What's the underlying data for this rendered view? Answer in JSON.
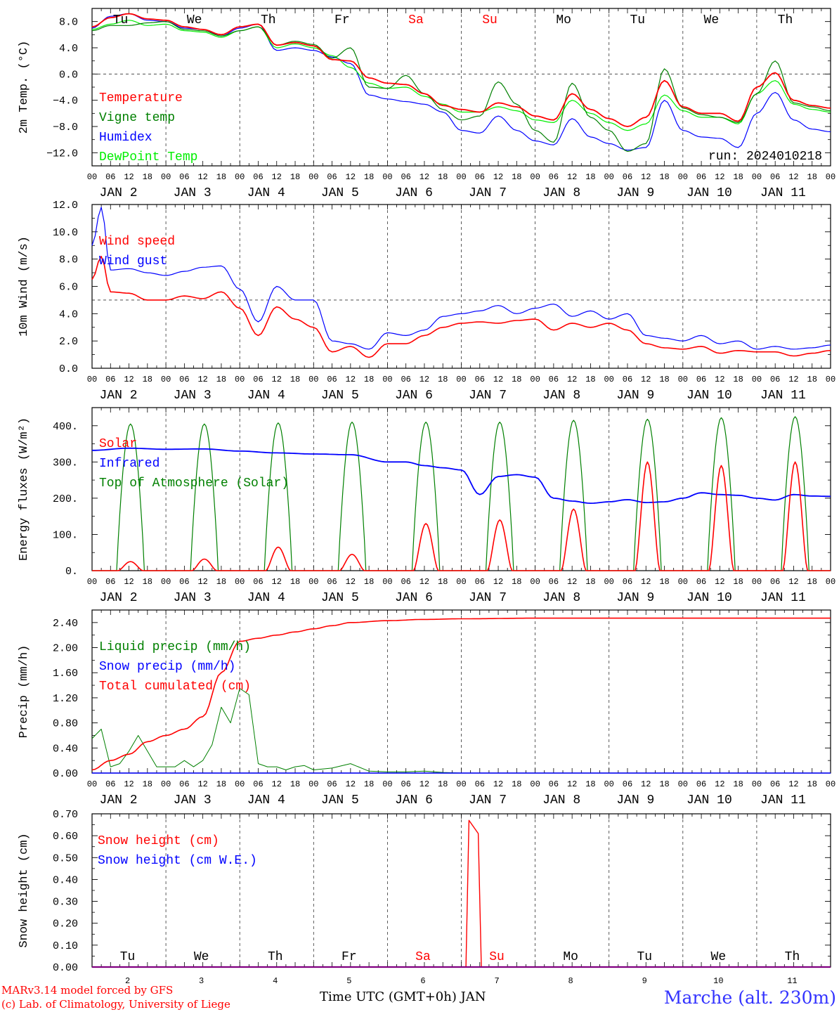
{
  "footer": {
    "model": "MARv3.14 model forced by GFS",
    "credit": "(c) Lab. of Climatology, University of Liege",
    "xlabel": "Time UTC (GMT+0h) JAN",
    "station": "Marche (alt. 230m)",
    "run": "run: 2024010218"
  },
  "colors": {
    "red": "#ff0000",
    "green": "#008000",
    "blue": "#0000ff",
    "lightgreen": "#00ee00",
    "axis": "#000000",
    "weekend": "#ff0000"
  },
  "days": {
    "names": [
      "Tu",
      "We",
      "Th",
      "Fr",
      "Sa",
      "Su",
      "Mo",
      "Tu",
      "We",
      "Th"
    ],
    "weekend": [
      false,
      false,
      false,
      false,
      true,
      true,
      false,
      false,
      false,
      false
    ],
    "dates": [
      "JAN  2",
      "JAN  3",
      "JAN  4",
      "JAN  5",
      "JAN  6",
      "JAN  7",
      "JAN  8",
      "JAN  9",
      "JAN 10",
      "JAN 11"
    ],
    "numbers": [
      "2",
      "3",
      "4",
      "5",
      "6",
      "7",
      "8",
      "9",
      "10",
      "11"
    ],
    "hour_ticks": [
      "00",
      "06",
      "12",
      "18"
    ],
    "final_tick": "00"
  },
  "chart_data": [
    {
      "type": "line",
      "ylabel": "2m Temp. (°C)",
      "ylim": [
        -14,
        10
      ],
      "yticks": [
        -12,
        -8,
        -4,
        0,
        4,
        8
      ],
      "ytick_labels": [
        "−12.0",
        "−8.0",
        "−4.0",
        "0.0",
        "4.0",
        "8.0"
      ],
      "zero_line": 0,
      "grid": "dashed day separators",
      "legend": "left",
      "x_unit": "hours since JAN 2 00 UTC",
      "series": [
        {
          "name": "Temperature",
          "color": "red",
          "x": [
            0,
            6,
            12,
            18,
            24,
            30,
            36,
            42,
            48,
            54,
            60,
            66,
            72,
            78,
            84,
            90,
            96,
            102,
            108,
            114,
            120,
            126,
            132,
            138,
            144,
            150,
            156,
            162,
            168,
            174,
            180,
            186,
            192,
            198,
            204,
            210,
            216,
            222,
            228,
            234,
            240
          ],
          "y": [
            7.2,
            8.6,
            9.2,
            8.4,
            8.2,
            7.2,
            6.8,
            6.0,
            7.2,
            7.6,
            4.4,
            4.8,
            4.3,
            2.2,
            2.0,
            -0.6,
            -1.4,
            -1.6,
            -3.0,
            -4.8,
            -5.4,
            -5.8,
            -4.4,
            -5.0,
            -6.4,
            -7.0,
            -3.0,
            -5.4,
            -6.8,
            -8.0,
            -6.6,
            -1.0,
            -5.0,
            -6.0,
            -6.0,
            -7.2,
            -2.0,
            0.2,
            -4.0,
            -4.8,
            -5.2
          ]
        },
        {
          "name": "Vigne temp",
          "color": "green",
          "x": [
            0,
            6,
            12,
            18,
            24,
            30,
            36,
            42,
            48,
            54,
            60,
            66,
            72,
            78,
            84,
            90,
            96,
            102,
            108,
            114,
            120,
            126,
            132,
            138,
            144,
            150,
            156,
            162,
            168,
            174,
            180,
            186,
            192,
            198,
            204,
            210,
            216,
            222,
            228,
            234,
            240
          ],
          "y": [
            6.6,
            7.4,
            7.4,
            7.8,
            8.0,
            6.8,
            6.6,
            5.8,
            6.6,
            7.2,
            4.4,
            5.0,
            4.5,
            2.4,
            4.0,
            -2.0,
            -2.2,
            -0.2,
            -3.0,
            -5.4,
            -7.0,
            -6.4,
            -1.2,
            -4.6,
            -8.6,
            -10.4,
            -1.4,
            -6.6,
            -8.6,
            -11.8,
            -10.6,
            0.8,
            -5.2,
            -6.2,
            -6.6,
            -7.4,
            -3.0,
            2.0,
            -4.4,
            -5.0,
            -5.6
          ]
        },
        {
          "name": "Humidex",
          "color": "blue",
          "x": [
            0,
            6,
            12,
            18,
            24,
            30,
            36,
            42,
            48,
            54,
            60,
            66,
            72,
            78,
            84,
            90,
            96,
            102,
            108,
            114,
            120,
            126,
            132,
            138,
            144,
            150,
            156,
            162,
            168,
            174,
            180,
            186,
            192,
            198,
            204,
            210,
            216,
            222,
            228,
            234,
            240
          ],
          "y": [
            7.0,
            8.8,
            9.2,
            8.2,
            8.0,
            7.0,
            6.8,
            5.8,
            7.0,
            7.6,
            3.6,
            4.0,
            3.6,
            2.6,
            1.6,
            -3.2,
            -3.8,
            -4.2,
            -4.6,
            -5.8,
            -8.6,
            -9.0,
            -6.4,
            -8.6,
            -10.2,
            -10.8,
            -6.8,
            -9.6,
            -10.6,
            -11.6,
            -11.2,
            -4.0,
            -8.6,
            -9.6,
            -9.8,
            -11.2,
            -6.0,
            -2.8,
            -7.0,
            -8.4,
            -8.8
          ]
        },
        {
          "name": "DewPoint Temp",
          "color": "lightgreen",
          "x": [
            0,
            6,
            12,
            18,
            24,
            30,
            36,
            42,
            48,
            54,
            60,
            66,
            72,
            78,
            84,
            90,
            96,
            102,
            108,
            114,
            120,
            126,
            132,
            138,
            144,
            150,
            156,
            162,
            168,
            174,
            180,
            186,
            192,
            198,
            204,
            210,
            216,
            222,
            228,
            234,
            240
          ],
          "y": [
            6.8,
            7.6,
            8.2,
            7.4,
            7.6,
            6.6,
            6.4,
            5.6,
            6.6,
            7.2,
            4.0,
            4.6,
            4.0,
            2.8,
            1.0,
            -1.4,
            -2.2,
            -2.0,
            -3.4,
            -4.6,
            -5.8,
            -5.8,
            -5.0,
            -5.6,
            -7.0,
            -7.4,
            -4.0,
            -6.0,
            -7.4,
            -8.6,
            -7.6,
            -3.2,
            -5.6,
            -6.6,
            -6.6,
            -7.6,
            -3.0,
            -1.0,
            -4.6,
            -5.4,
            -5.8
          ]
        }
      ]
    },
    {
      "type": "line",
      "ylabel": "10m Wind (m/s)",
      "ylim": [
        0,
        12
      ],
      "yticks": [
        0,
        2,
        4,
        6,
        8,
        10,
        12
      ],
      "ytick_labels": [
        "0.0",
        "2.0",
        "4.0",
        "6.0",
        "8.0",
        "10.0",
        "12.0"
      ],
      "ref_line": 5,
      "legend": "left",
      "series": [
        {
          "name": "Wind speed",
          "color": "red",
          "x": [
            0,
            3,
            6,
            12,
            18,
            24,
            30,
            36,
            42,
            48,
            54,
            60,
            66,
            72,
            78,
            84,
            90,
            96,
            102,
            108,
            114,
            120,
            126,
            132,
            138,
            144,
            150,
            156,
            162,
            168,
            174,
            180,
            186,
            192,
            198,
            204,
            210,
            216,
            222,
            228,
            234,
            240
          ],
          "y": [
            6.5,
            8.2,
            5.6,
            5.5,
            5.0,
            5.0,
            5.3,
            5.1,
            5.6,
            4.4,
            2.4,
            4.5,
            3.6,
            3.0,
            1.2,
            1.6,
            0.8,
            1.8,
            1.8,
            2.4,
            3.0,
            3.3,
            3.4,
            3.3,
            3.5,
            3.6,
            2.8,
            3.3,
            3.0,
            3.3,
            2.8,
            1.8,
            1.5,
            1.4,
            1.6,
            1.1,
            1.3,
            1.2,
            1.2,
            0.9,
            1.1,
            1.3
          ]
        },
        {
          "name": "Wind gust",
          "color": "blue",
          "x": [
            0,
            3,
            6,
            12,
            18,
            24,
            30,
            36,
            42,
            48,
            54,
            60,
            66,
            72,
            78,
            84,
            90,
            96,
            102,
            108,
            114,
            120,
            126,
            132,
            138,
            144,
            150,
            156,
            162,
            168,
            174,
            180,
            186,
            192,
            198,
            204,
            210,
            216,
            222,
            228,
            234,
            240
          ],
          "y": [
            9.0,
            11.8,
            7.2,
            7.3,
            7.0,
            6.8,
            7.1,
            7.4,
            7.5,
            5.8,
            3.4,
            6.0,
            5.0,
            5.0,
            2.0,
            1.8,
            1.4,
            2.6,
            2.4,
            2.8,
            3.8,
            4.0,
            4.2,
            4.6,
            4.0,
            4.4,
            4.7,
            3.8,
            4.2,
            3.6,
            4.0,
            2.4,
            2.2,
            2.0,
            2.4,
            1.8,
            2.0,
            1.4,
            1.6,
            1.4,
            1.5,
            1.7
          ]
        }
      ]
    },
    {
      "type": "line",
      "ylabel": "Energy fluxes (W/m²)",
      "ylim": [
        0,
        450
      ],
      "yticks": [
        0,
        100,
        200,
        300,
        400
      ],
      "ytick_labels": [
        "0.",
        "100.",
        "200.",
        "300.",
        "400."
      ],
      "legend": "left",
      "series": [
        {
          "name": "Solar",
          "color": "red",
          "daily_peaks": [
            25,
            32,
            65,
            45,
            130,
            140,
            170,
            300,
            290,
            300
          ]
        },
        {
          "name": "Infrared",
          "color": "blue",
          "x": [
            0,
            12,
            24,
            36,
            48,
            60,
            72,
            84,
            96,
            102,
            108,
            114,
            120,
            126,
            132,
            138,
            144,
            150,
            156,
            162,
            168,
            174,
            180,
            186,
            192,
            198,
            204,
            210,
            216,
            222,
            228,
            234,
            240
          ],
          "y": [
            332,
            338,
            335,
            336,
            330,
            325,
            322,
            320,
            300,
            300,
            290,
            284,
            278,
            210,
            260,
            265,
            258,
            200,
            192,
            186,
            190,
            196,
            188,
            190,
            200,
            215,
            210,
            208,
            200,
            195,
            210,
            206,
            205
          ]
        },
        {
          "name": "Top of Atmosphere (Solar)",
          "color": "green",
          "daily_peaks": [
            405,
            405,
            408,
            410,
            410,
            410,
            415,
            418,
            422,
            425
          ]
        }
      ]
    },
    {
      "type": "line",
      "ylabel": "Precip (mm/h)",
      "ylim": [
        0,
        2.6
      ],
      "yticks": [
        0,
        0.4,
        0.8,
        1.2,
        1.6,
        2.0,
        2.4
      ],
      "ytick_labels": [
        "0.00",
        "0.40",
        "0.80",
        "1.20",
        "1.60",
        "2.00",
        "2.40"
      ],
      "legend": "left",
      "series": [
        {
          "name": "Liquid precip (mm/h)",
          "color": "green",
          "x": [
            0,
            3,
            6,
            9,
            12,
            15,
            18,
            21,
            24,
            27,
            30,
            33,
            36,
            39,
            42,
            45,
            48,
            51,
            54,
            57,
            60,
            63,
            66,
            69,
            72,
            78,
            84,
            90,
            96,
            102,
            108,
            114,
            120,
            240
          ],
          "y": [
            0.55,
            0.7,
            0.1,
            0.15,
            0.35,
            0.6,
            0.35,
            0.1,
            0.1,
            0.1,
            0.2,
            0.1,
            0.2,
            0.45,
            1.05,
            0.8,
            1.35,
            1.25,
            0.15,
            0.1,
            0.1,
            0.05,
            0.1,
            0.12,
            0.05,
            0.08,
            0.15,
            0.03,
            0.02,
            0.02,
            0.03,
            0.01,
            0.0,
            0.0
          ]
        },
        {
          "name": "Snow precip (mm/h)",
          "color": "blue",
          "x": [
            0,
            240
          ],
          "y": [
            0,
            0
          ]
        },
        {
          "name": "Total cumulated (cm)",
          "color": "red",
          "x": [
            0,
            6,
            12,
            18,
            24,
            30,
            36,
            42,
            48,
            54,
            60,
            66,
            72,
            78,
            84,
            96,
            108,
            120,
            144,
            168,
            192,
            216,
            240
          ],
          "y": [
            0.05,
            0.2,
            0.3,
            0.5,
            0.6,
            0.7,
            0.9,
            1.6,
            2.1,
            2.15,
            2.2,
            2.25,
            2.3,
            2.35,
            2.4,
            2.43,
            2.45,
            2.46,
            2.47,
            2.47,
            2.47,
            2.47,
            2.47
          ]
        }
      ]
    },
    {
      "type": "line",
      "ylabel": "Snow height (cm)",
      "ylim": [
        0,
        0.7
      ],
      "yticks": [
        0,
        0.1,
        0.2,
        0.3,
        0.4,
        0.5,
        0.6,
        0.7
      ],
      "ytick_labels": [
        "0.00",
        "0.10",
        "0.20",
        "0.30",
        "0.40",
        "0.50",
        "0.60",
        "0.70"
      ],
      "legend": "left",
      "series": [
        {
          "name": "Snow height (cm)",
          "color": "red",
          "x": [
            0,
            121.5,
            122.5,
            125.5,
            126.5,
            240
          ],
          "y": [
            0,
            0,
            0.67,
            0.61,
            0,
            0
          ]
        },
        {
          "name": "Snow height (cm W.E.)",
          "color": "blue",
          "x": [
            0,
            240
          ],
          "y": [
            0,
            0
          ]
        }
      ]
    }
  ]
}
